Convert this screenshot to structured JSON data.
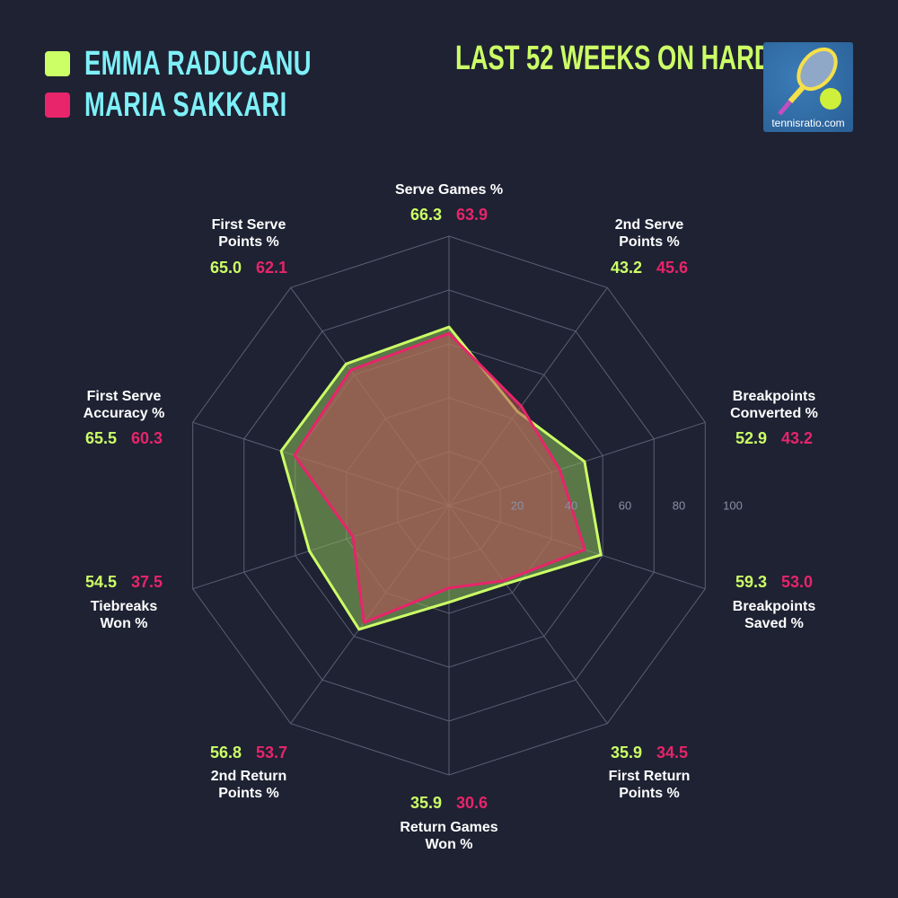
{
  "chart_data": {
    "type": "radar",
    "title": "LAST 52 WEEKS ON HARD",
    "radial_ticks": [
      20,
      40,
      60,
      80,
      100
    ],
    "rlim": [
      0,
      100
    ],
    "legend_placement": "top-left",
    "axes": [
      [
        "Serve Games %"
      ],
      [
        "2nd Serve",
        "Points %"
      ],
      [
        "Breakpoints",
        "Converted %"
      ],
      [
        "Breakpoints",
        "Saved %"
      ],
      [
        "First Return",
        "Points %"
      ],
      [
        "Return Games",
        "Won %"
      ],
      [
        "2nd Return",
        "Points %"
      ],
      [
        "Tiebreaks",
        "Won %"
      ],
      [
        "First Serve",
        "Accuracy %"
      ],
      [
        "First Serve",
        "Points %"
      ]
    ],
    "series": [
      {
        "name": "EMMA RADUCANU",
        "color": "#ccff66",
        "values": [
          "66.3",
          "43.2",
          "52.9",
          "59.3",
          "35.9",
          "35.9",
          "56.8",
          "54.5",
          "65.5",
          "65.0"
        ]
      },
      {
        "name": "MARIA SAKKARI",
        "color": "#e8246a",
        "values": [
          "63.9",
          "45.6",
          "43.2",
          "53.0",
          "34.5",
          "30.6",
          "53.7",
          "37.5",
          "60.3",
          "62.1"
        ]
      }
    ]
  },
  "logo": {
    "text": "tennisratio.com",
    "icon": "tennis-racket-ball-icon"
  }
}
